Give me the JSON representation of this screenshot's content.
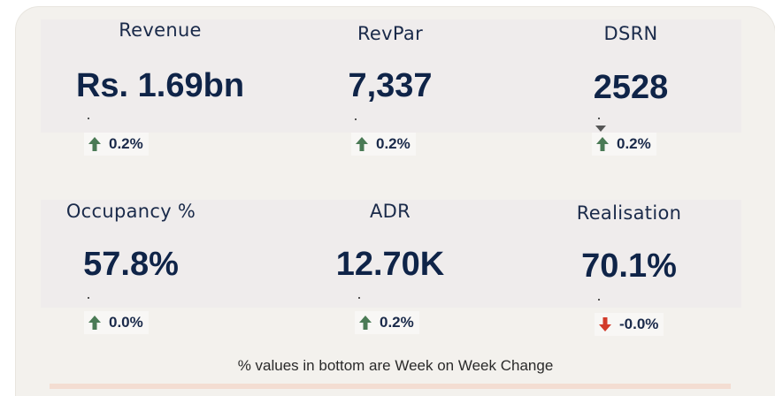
{
  "kpis": [
    {
      "label": "Revenue",
      "value": "Rs. 1.69bn",
      "change": "0.2%",
      "direction": "up"
    },
    {
      "label": "RevPar",
      "value": "7,337",
      "change": "0.2%",
      "direction": "up"
    },
    {
      "label": "DSRN",
      "value": "2528",
      "change": "0.2%",
      "direction": "up"
    },
    {
      "label": "Occupancy %",
      "value": "57.8%",
      "change": "0.0%",
      "direction": "up"
    },
    {
      "label": "ADR",
      "value": "12.70K",
      "change": "0.2%",
      "direction": "up"
    },
    {
      "label": "Realisation",
      "value": "70.1%",
      "change": "-0.0%",
      "direction": "down"
    }
  ],
  "footnote": "% values in bottom are Week on Week Change",
  "colors": {
    "up": "#4a7a55",
    "down": "#d23b2a",
    "value": "#0f2448"
  }
}
